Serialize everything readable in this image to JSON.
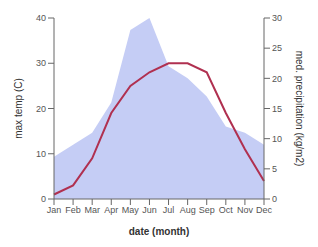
{
  "chart_data": {
    "type": "line",
    "categories": [
      "Jan",
      "Feb",
      "Mar",
      "Apr",
      "May",
      "Jun",
      "Jul",
      "Aug",
      "Sep",
      "Oct",
      "Nov",
      "Dec"
    ],
    "xlabel": "date (month)",
    "ylabel": "max temp (C)",
    "y2label": "med. precipitation (kg/m2)",
    "series": [
      {
        "type": "area",
        "color": "#c5cdf5",
        "axis": "y2",
        "values": [
          7,
          9,
          11,
          16,
          28,
          30,
          22,
          20,
          17,
          12,
          11,
          9
        ]
      },
      {
        "type": "line",
        "color": "#b03050",
        "values": [
          1,
          3,
          9,
          19,
          25,
          28,
          30,
          30,
          28,
          19,
          11,
          4
        ]
      }
    ],
    "ylim": [
      0,
      40
    ],
    "yticks": [
      0,
      10,
      20,
      30,
      40
    ],
    "y2lim": [
      0,
      30
    ],
    "y2ticks": [
      0,
      5,
      10,
      15,
      20,
      25,
      30
    ],
    "grid": false
  }
}
